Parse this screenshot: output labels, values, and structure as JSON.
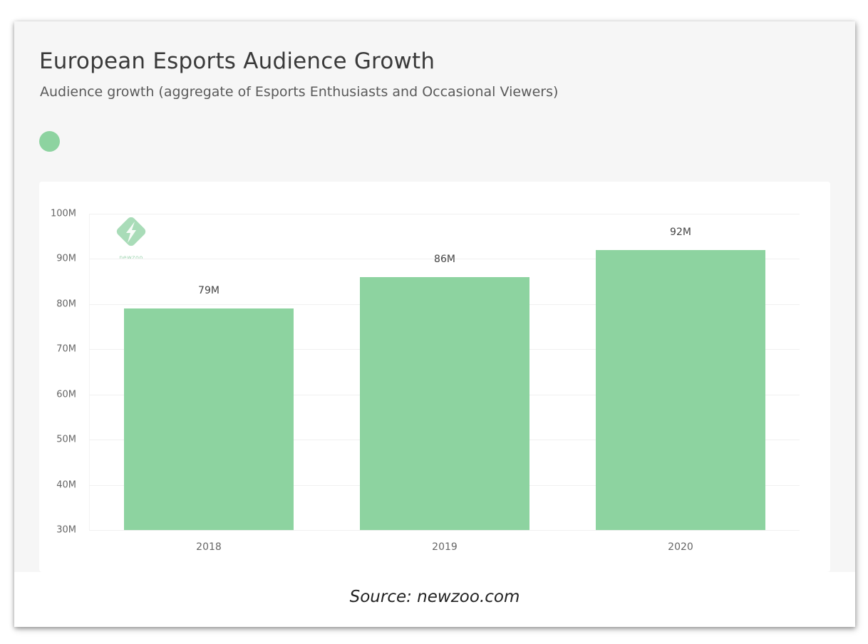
{
  "header": {
    "title": "European Esports Audience Growth",
    "subtitle": "Audience growth (aggregate of Esports Enthusiasts and Occasional Viewers)"
  },
  "legend": {
    "color": "#8dd3a0",
    "label": ""
  },
  "logo": {
    "text": "newzoo",
    "icon": "newzoo-logo-icon"
  },
  "source": "Source: newzoo.com",
  "colors": {
    "bar": "#8dd3a0",
    "panel": "#f6f6f6",
    "card": "#ffffff"
  },
  "chart_data": {
    "type": "bar",
    "title": "European Esports Audience Growth",
    "subtitle": "Audience growth (aggregate of Esports Enthusiasts and Occasional Viewers)",
    "categories": [
      "2018",
      "2019",
      "2020"
    ],
    "values": [
      79,
      86,
      92
    ],
    "value_labels": [
      "79M",
      "86M",
      "92M"
    ],
    "unit": "M",
    "xlabel": "",
    "ylabel": "",
    "ylim": [
      30,
      100
    ],
    "yticks": [
      "30M",
      "40M",
      "50M",
      "60M",
      "70M",
      "80M",
      "90M",
      "100M"
    ],
    "grid": true,
    "legend_position": "top-left",
    "annotation": "Source: newzoo.com"
  }
}
